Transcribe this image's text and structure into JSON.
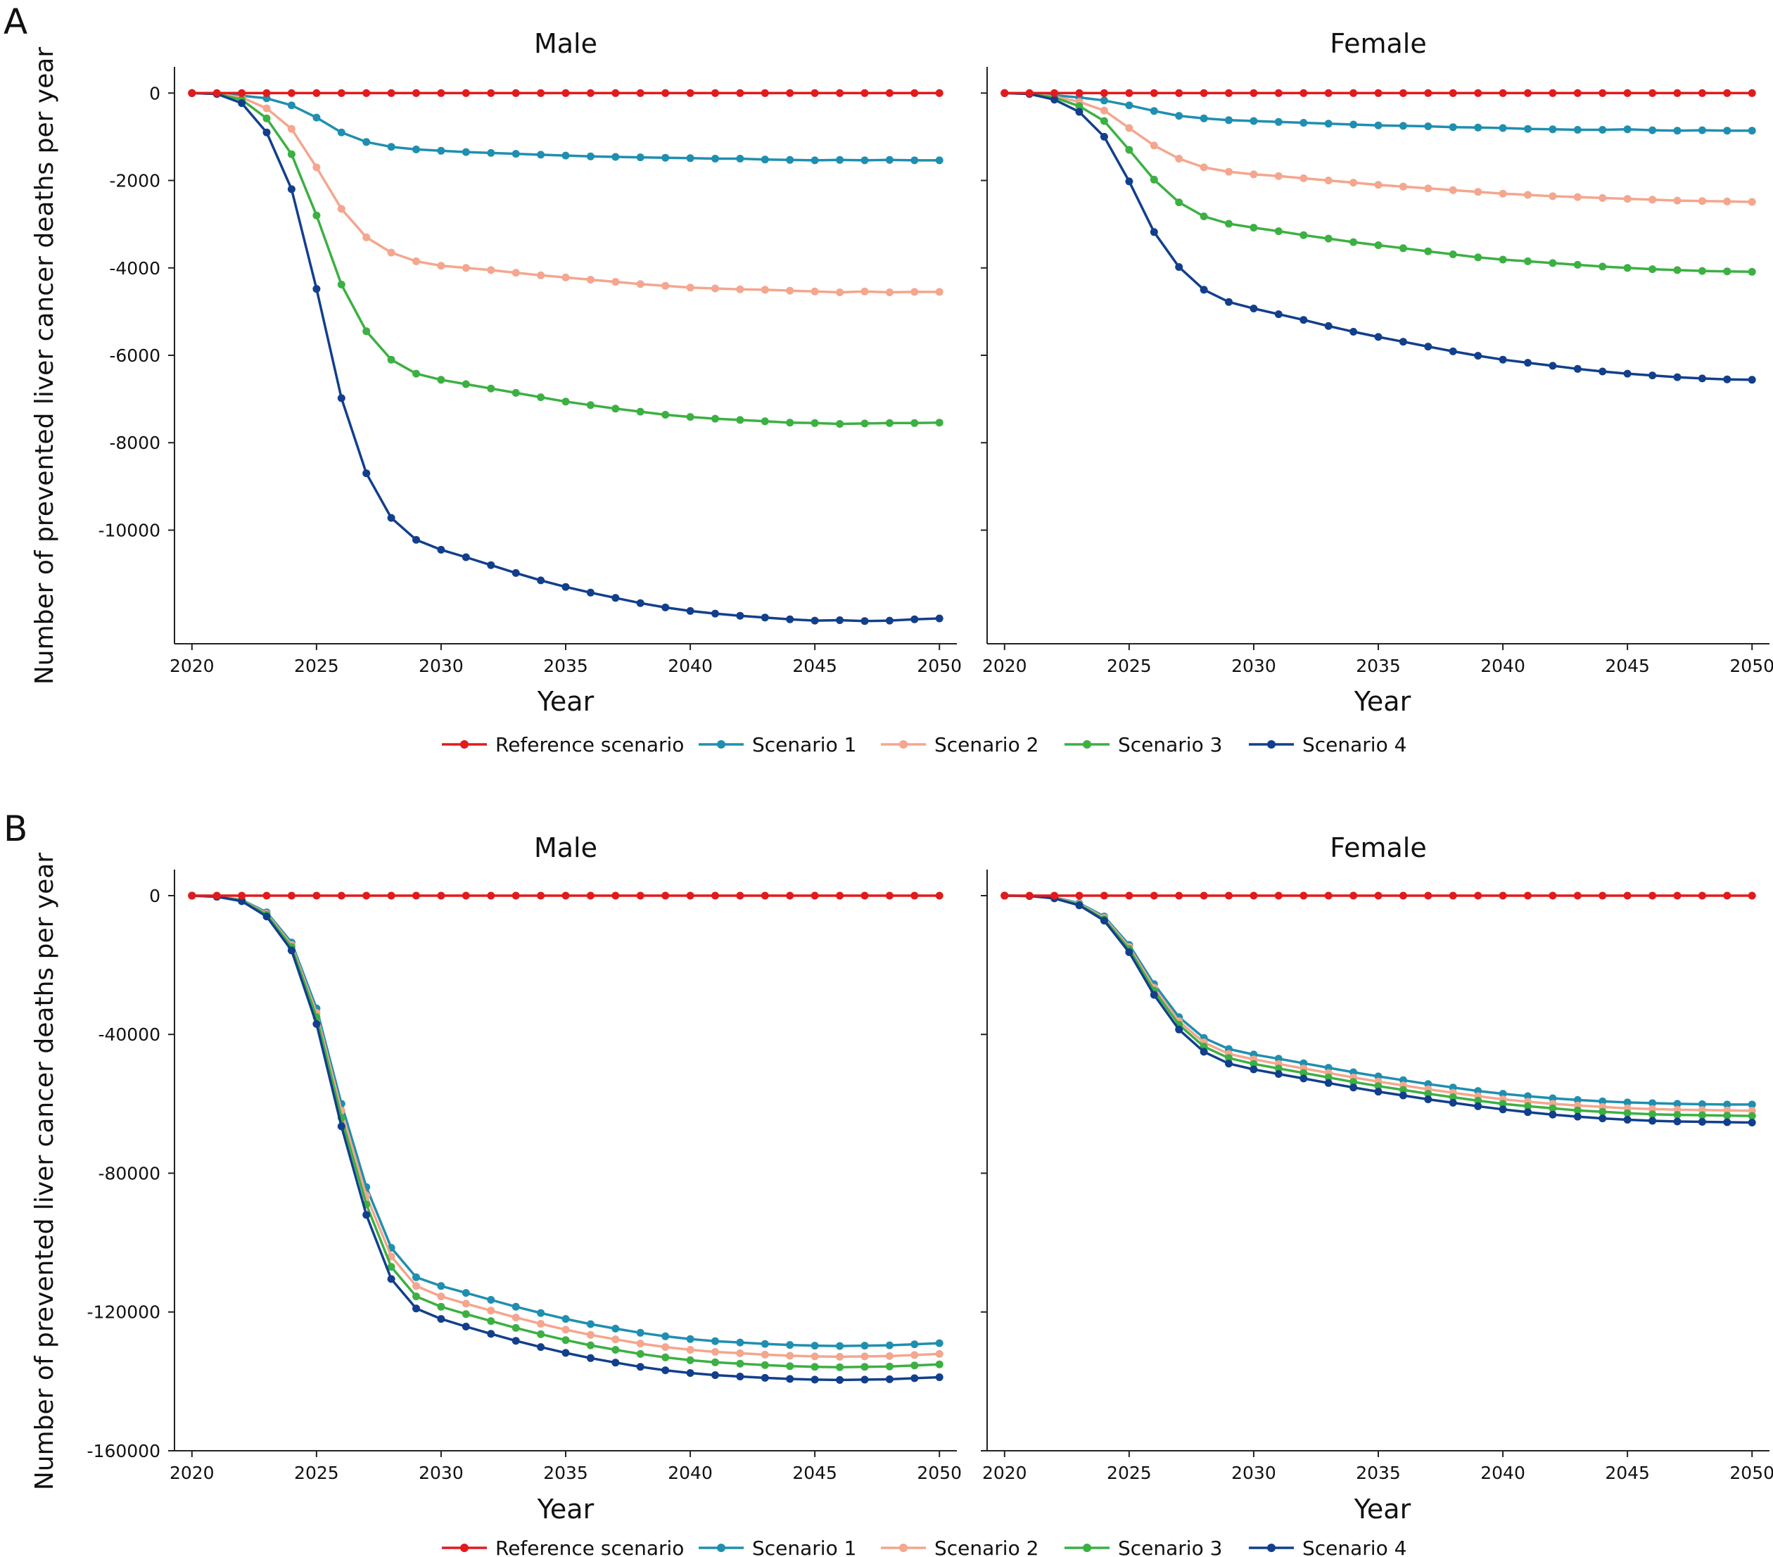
{
  "panels": [
    {
      "letter": "A",
      "ylabel": "Number of prevented liver cancer deaths per year",
      "xlabel": "Year",
      "legend": [
        "Reference scenario",
        "Scenario 1",
        "Scenario 2",
        "Scenario 3",
        "Scenario 4"
      ]
    },
    {
      "letter": "B",
      "ylabel": "Number of prevented liver cancer deaths per year",
      "xlabel": "Year",
      "legend": [
        "Reference scenario",
        "Scenario 1",
        "Scenario 2",
        "Scenario 3",
        "Scenario 4"
      ]
    }
  ],
  "series_colors": {
    "Reference scenario": "#e31a1c",
    "Scenario 1": "#1f8fb0",
    "Scenario 2": "#f4a68e",
    "Scenario 3": "#3cb043",
    "Scenario 4": "#123f8c"
  },
  "chart_data": [
    {
      "type": "line",
      "panel": "A",
      "facet": "Male",
      "title": "Male",
      "xlabel": "Year",
      "ylabel": "Number of prevented liver cancer deaths per year",
      "x": [
        2020,
        2021,
        2022,
        2023,
        2024,
        2025,
        2026,
        2027,
        2028,
        2029,
        2030,
        2031,
        2032,
        2033,
        2034,
        2035,
        2036,
        2037,
        2038,
        2039,
        2040,
        2041,
        2042,
        2043,
        2044,
        2045,
        2046,
        2047,
        2048,
        2049,
        2050
      ],
      "xticks": [
        2020,
        2025,
        2030,
        2035,
        2040,
        2045,
        2050
      ],
      "xlim": [
        2019.3,
        2050.7
      ],
      "yticks": [
        0,
        -2000,
        -4000,
        -6000,
        -8000,
        -10000
      ],
      "ylim": [
        -12600,
        600
      ],
      "series": [
        {
          "name": "Reference scenario",
          "values": [
            0,
            0,
            0,
            0,
            0,
            0,
            0,
            0,
            0,
            0,
            0,
            0,
            0,
            0,
            0,
            0,
            0,
            0,
            0,
            0,
            0,
            0,
            0,
            0,
            0,
            0,
            0,
            0,
            0,
            0,
            0
          ]
        },
        {
          "name": "Scenario 1",
          "values": [
            0,
            -20,
            -60,
            -120,
            -280,
            -560,
            -900,
            -1120,
            -1230,
            -1290,
            -1320,
            -1350,
            -1370,
            -1390,
            -1410,
            -1430,
            -1450,
            -1460,
            -1470,
            -1480,
            -1490,
            -1500,
            -1500,
            -1520,
            -1530,
            -1540,
            -1530,
            -1540,
            -1530,
            -1540,
            -1540
          ]
        },
        {
          "name": "Scenario 2",
          "values": [
            0,
            -20,
            -100,
            -350,
            -820,
            -1700,
            -2650,
            -3300,
            -3650,
            -3850,
            -3950,
            -4000,
            -4050,
            -4110,
            -4170,
            -4220,
            -4270,
            -4320,
            -4370,
            -4410,
            -4450,
            -4470,
            -4490,
            -4500,
            -4520,
            -4540,
            -4560,
            -4540,
            -4560,
            -4550,
            -4550
          ]
        },
        {
          "name": "Scenario 3",
          "values": [
            0,
            -20,
            -150,
            -580,
            -1400,
            -2800,
            -4380,
            -5450,
            -6100,
            -6420,
            -6560,
            -6660,
            -6760,
            -6860,
            -6960,
            -7060,
            -7140,
            -7220,
            -7290,
            -7360,
            -7410,
            -7450,
            -7480,
            -7510,
            -7540,
            -7550,
            -7570,
            -7560,
            -7550,
            -7550,
            -7540
          ]
        },
        {
          "name": "Scenario 4",
          "values": [
            0,
            -20,
            -230,
            -900,
            -2200,
            -4480,
            -6980,
            -8700,
            -9720,
            -10220,
            -10450,
            -10620,
            -10800,
            -10980,
            -11150,
            -11300,
            -11430,
            -11550,
            -11670,
            -11770,
            -11850,
            -11910,
            -11960,
            -12000,
            -12040,
            -12070,
            -12060,
            -12080,
            -12070,
            -12040,
            -12020
          ]
        }
      ]
    },
    {
      "type": "line",
      "panel": "A",
      "facet": "Female",
      "title": "Female",
      "xlabel": "Year",
      "ylabel": "",
      "x": [
        2020,
        2021,
        2022,
        2023,
        2024,
        2025,
        2026,
        2027,
        2028,
        2029,
        2030,
        2031,
        2032,
        2033,
        2034,
        2035,
        2036,
        2037,
        2038,
        2039,
        2040,
        2041,
        2042,
        2043,
        2044,
        2045,
        2046,
        2047,
        2048,
        2049,
        2050
      ],
      "xticks": [
        2020,
        2025,
        2030,
        2035,
        2040,
        2045,
        2050
      ],
      "xlim": [
        2019.3,
        2050.7
      ],
      "yticks": [
        0,
        -2000,
        -4000,
        -6000,
        -8000,
        -10000
      ],
      "ylim": [
        -12600,
        600
      ],
      "series": [
        {
          "name": "Reference scenario",
          "values": [
            0,
            0,
            0,
            0,
            0,
            0,
            0,
            0,
            0,
            0,
            0,
            0,
            0,
            0,
            0,
            0,
            0,
            0,
            0,
            0,
            0,
            0,
            0,
            0,
            0,
            0,
            0,
            0,
            0,
            0,
            0
          ]
        },
        {
          "name": "Scenario 1",
          "values": [
            0,
            -20,
            -50,
            -100,
            -170,
            -280,
            -410,
            -520,
            -580,
            -620,
            -640,
            -660,
            -680,
            -700,
            -720,
            -740,
            -750,
            -760,
            -780,
            -790,
            -800,
            -820,
            -830,
            -840,
            -840,
            -830,
            -850,
            -860,
            -850,
            -860,
            -860
          ]
        },
        {
          "name": "Scenario 2",
          "values": [
            0,
            -20,
            -80,
            -200,
            -400,
            -800,
            -1200,
            -1500,
            -1700,
            -1800,
            -1860,
            -1900,
            -1950,
            -2000,
            -2050,
            -2100,
            -2140,
            -2180,
            -2220,
            -2260,
            -2300,
            -2330,
            -2360,
            -2380,
            -2400,
            -2420,
            -2440,
            -2460,
            -2470,
            -2480,
            -2490
          ]
        },
        {
          "name": "Scenario 3",
          "values": [
            0,
            -20,
            -100,
            -300,
            -640,
            -1300,
            -1980,
            -2500,
            -2820,
            -2990,
            -3080,
            -3160,
            -3250,
            -3330,
            -3410,
            -3480,
            -3550,
            -3620,
            -3690,
            -3760,
            -3810,
            -3850,
            -3890,
            -3930,
            -3970,
            -4000,
            -4030,
            -4050,
            -4070,
            -4080,
            -4090
          ]
        },
        {
          "name": "Scenario 4",
          "values": [
            0,
            -20,
            -150,
            -430,
            -1000,
            -2020,
            -3180,
            -3980,
            -4500,
            -4780,
            -4930,
            -5060,
            -5190,
            -5330,
            -5460,
            -5580,
            -5690,
            -5800,
            -5910,
            -6010,
            -6100,
            -6170,
            -6240,
            -6310,
            -6370,
            -6420,
            -6460,
            -6500,
            -6530,
            -6550,
            -6560
          ]
        }
      ]
    },
    {
      "type": "line",
      "panel": "B",
      "facet": "Male",
      "title": "Male",
      "xlabel": "Year",
      "ylabel": "Number of prevented liver cancer deaths per year",
      "x": [
        2020,
        2021,
        2022,
        2023,
        2024,
        2025,
        2026,
        2027,
        2028,
        2029,
        2030,
        2031,
        2032,
        2033,
        2034,
        2035,
        2036,
        2037,
        2038,
        2039,
        2040,
        2041,
        2042,
        2043,
        2044,
        2045,
        2046,
        2047,
        2048,
        2049,
        2050
      ],
      "xticks": [
        2020,
        2025,
        2030,
        2035,
        2040,
        2045,
        2050
      ],
      "xlim": [
        2019.3,
        2050.7
      ],
      "yticks": [
        0,
        -40000,
        -80000,
        -120000,
        -160000
      ],
      "ylim": [
        -160000,
        7500
      ],
      "series": [
        {
          "name": "Reference scenario",
          "values": [
            0,
            0,
            0,
            0,
            0,
            0,
            0,
            0,
            0,
            0,
            0,
            0,
            0,
            0,
            0,
            0,
            0,
            0,
            0,
            0,
            0,
            0,
            0,
            0,
            0,
            0,
            0,
            0,
            0,
            0,
            0
          ]
        },
        {
          "name": "Scenario 1",
          "values": [
            0,
            -300,
            -1200,
            -4800,
            -13500,
            -32500,
            -60000,
            -84000,
            -101500,
            -110000,
            -112500,
            -114500,
            -116500,
            -118500,
            -120300,
            -122000,
            -123500,
            -124800,
            -126000,
            -127000,
            -127800,
            -128400,
            -128800,
            -129200,
            -129500,
            -129700,
            -129800,
            -129700,
            -129600,
            -129300,
            -129000
          ]
        },
        {
          "name": "Scenario 2",
          "values": [
            0,
            -300,
            -1300,
            -5200,
            -14200,
            -33800,
            -62000,
            -86500,
            -104000,
            -112500,
            -115500,
            -117600,
            -119600,
            -121600,
            -123400,
            -125100,
            -126600,
            -127900,
            -129100,
            -130100,
            -130900,
            -131500,
            -131900,
            -132300,
            -132600,
            -132800,
            -132900,
            -132800,
            -132700,
            -132400,
            -132100
          ]
        },
        {
          "name": "Scenario 3",
          "values": [
            0,
            -300,
            -1400,
            -5500,
            -14800,
            -35000,
            -64000,
            -89000,
            -107000,
            -115500,
            -118500,
            -120600,
            -122600,
            -124600,
            -126400,
            -128100,
            -129600,
            -130900,
            -132100,
            -133100,
            -133900,
            -134500,
            -134900,
            -135300,
            -135600,
            -135800,
            -135900,
            -135800,
            -135700,
            -135400,
            -135100
          ]
        },
        {
          "name": "Scenario 4",
          "values": [
            0,
            -300,
            -1600,
            -6000,
            -15800,
            -37000,
            -66500,
            -92000,
            -110500,
            -119000,
            -122000,
            -124200,
            -126300,
            -128300,
            -130100,
            -131800,
            -133300,
            -134600,
            -135800,
            -136800,
            -137600,
            -138200,
            -138600,
            -139000,
            -139300,
            -139500,
            -139600,
            -139500,
            -139400,
            -139100,
            -138800
          ]
        }
      ]
    },
    {
      "type": "line",
      "panel": "B",
      "facet": "Female",
      "title": "Female",
      "xlabel": "Year",
      "ylabel": "",
      "x": [
        2020,
        2021,
        2022,
        2023,
        2024,
        2025,
        2026,
        2027,
        2028,
        2029,
        2030,
        2031,
        2032,
        2033,
        2034,
        2035,
        2036,
        2037,
        2038,
        2039,
        2040,
        2041,
        2042,
        2043,
        2044,
        2045,
        2046,
        2047,
        2048,
        2049,
        2050
      ],
      "xticks": [
        2020,
        2025,
        2030,
        2035,
        2040,
        2045,
        2050
      ],
      "xlim": [
        2019.3,
        2050.7
      ],
      "yticks": [
        0,
        -40000,
        -80000,
        -120000,
        -160000
      ],
      "ylim": [
        -160000,
        7500
      ],
      "series": [
        {
          "name": "Reference scenario",
          "values": [
            0,
            0,
            0,
            0,
            0,
            0,
            0,
            0,
            0,
            0,
            0,
            0,
            0,
            0,
            0,
            0,
            0,
            0,
            0,
            0,
            0,
            0,
            0,
            0,
            0,
            0,
            0,
            0,
            0,
            0,
            0
          ]
        },
        {
          "name": "Scenario 1",
          "values": [
            0,
            -100,
            -500,
            -2200,
            -6000,
            -14200,
            -25500,
            -35000,
            -41000,
            -44200,
            -45800,
            -47000,
            -48300,
            -49600,
            -50900,
            -52100,
            -53200,
            -54300,
            -55300,
            -56300,
            -57100,
            -57800,
            -58400,
            -58900,
            -59300,
            -59600,
            -59800,
            -60000,
            -60100,
            -60200,
            -60200
          ]
        },
        {
          "name": "Scenario 2",
          "values": [
            0,
            -100,
            -600,
            -2400,
            -6400,
            -14800,
            -26500,
            -36200,
            -42300,
            -45600,
            -47200,
            -48500,
            -49800,
            -51100,
            -52400,
            -53600,
            -54700,
            -55800,
            -56800,
            -57800,
            -58700,
            -59400,
            -60000,
            -60500,
            -60900,
            -61300,
            -61500,
            -61700,
            -61800,
            -61900,
            -62000
          ]
        },
        {
          "name": "Scenario 3",
          "values": [
            0,
            -100,
            -700,
            -2600,
            -6800,
            -15400,
            -27400,
            -37200,
            -43500,
            -46800,
            -48500,
            -49800,
            -51100,
            -52400,
            -53700,
            -54900,
            -56000,
            -57100,
            -58100,
            -59100,
            -60000,
            -60700,
            -61300,
            -61900,
            -62300,
            -62700,
            -63000,
            -63200,
            -63300,
            -63400,
            -63500
          ]
        },
        {
          "name": "Scenario 4",
          "values": [
            0,
            -100,
            -800,
            -2800,
            -7200,
            -16300,
            -28600,
            -38600,
            -45000,
            -48400,
            -50100,
            -51400,
            -52700,
            -54000,
            -55300,
            -56500,
            -57600,
            -58700,
            -59700,
            -60700,
            -61600,
            -62400,
            -63100,
            -63700,
            -64200,
            -64600,
            -64900,
            -65100,
            -65200,
            -65300,
            -65400
          ]
        }
      ]
    }
  ]
}
